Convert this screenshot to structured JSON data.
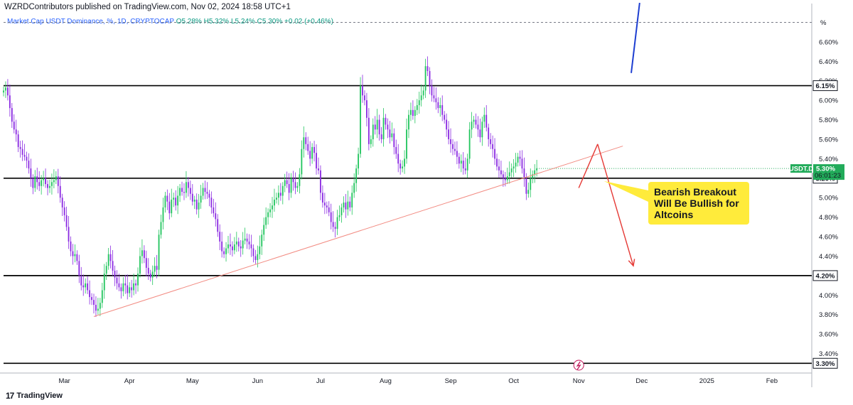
{
  "header": {
    "author": "WZRDContributors",
    "publish_text": "published on TradingView.com, Nov 02, 2024 18:58 UTC+1"
  },
  "legend": {
    "symbol_name": "Market Cap USDT Dominance, %, 1D, CRYPTOCAP",
    "open": "O5.28%",
    "high": "H5.32%",
    "low": "L5.24%",
    "close": "C5.30%",
    "change": "+0.02 (+0.46%)"
  },
  "footer": {
    "brand": "TradingView",
    "logo": "17"
  },
  "colors": {
    "up": "#22c55e",
    "down": "#8b2be2",
    "level_line": "#000000",
    "trendline": "#f28b82",
    "arrow_red": "#e53935",
    "arrow_blue": "#1e3fd1",
    "callout_bg": "#ffeb3b",
    "price_badge": "#22ab5a",
    "lightning_icon": "#c2185b"
  },
  "chart_data": {
    "type": "candlestick",
    "title": "",
    "y_unit": "%",
    "ylim": [
      3.2,
      6.92
    ],
    "y_ticks": [
      "3.40%",
      "3.60%",
      "3.80%",
      "4.00%",
      "4.20%",
      "4.40%",
      "4.60%",
      "4.80%",
      "5.00%",
      "5.20%",
      "5.40%",
      "5.60%",
      "5.80%",
      "6.00%",
      "6.20%",
      "6.40%",
      "6.60%"
    ],
    "y_axis_unit_label": "%",
    "x_date_range": [
      "2024-02-01",
      "2025-02-20"
    ],
    "x_ticks": [
      {
        "label": "Mar",
        "date": "2024-03-01"
      },
      {
        "label": "Apr",
        "date": "2024-04-01"
      },
      {
        "label": "May",
        "date": "2024-05-01"
      },
      {
        "label": "Jun",
        "date": "2024-06-01"
      },
      {
        "label": "Jul",
        "date": "2024-07-01"
      },
      {
        "label": "Aug",
        "date": "2024-08-01"
      },
      {
        "label": "Sep",
        "date": "2024-09-01"
      },
      {
        "label": "Oct",
        "date": "2024-10-01"
      },
      {
        "label": "Nov",
        "date": "2024-11-01"
      },
      {
        "label": "Dec",
        "date": "2024-12-01"
      },
      {
        "label": "2025",
        "date": "2025-01-01"
      },
      {
        "label": "Feb",
        "date": "2025-02-01"
      }
    ],
    "close_series": {
      "start_date": "2024-02-01",
      "frequency": "1D",
      "values": [
        6.1,
        6.13,
        6.05,
        5.92,
        5.78,
        5.7,
        5.65,
        5.52,
        5.5,
        5.44,
        5.42,
        5.38,
        5.3,
        5.2,
        5.1,
        5.22,
        5.16,
        5.12,
        5.18,
        5.2,
        5.14,
        5.1,
        5.12,
        5.16,
        5.18,
        5.22,
        5.12,
        5.0,
        4.9,
        4.82,
        4.7,
        4.55,
        4.45,
        4.4,
        4.42,
        4.35,
        4.2,
        4.1,
        4.08,
        4.12,
        4.05,
        3.98,
        3.95,
        3.9,
        3.84,
        3.86,
        3.92,
        4.05,
        4.22,
        4.3,
        4.42,
        4.35,
        4.25,
        4.18,
        4.12,
        4.08,
        4.04,
        4.12,
        4.1,
        4.02,
        4.08,
        4.05,
        4.12,
        4.1,
        4.22,
        4.4,
        4.46,
        4.38,
        4.28,
        4.22,
        4.18,
        4.24,
        4.3,
        4.26,
        4.62,
        4.75,
        4.9,
        5.02,
        4.96,
        4.84,
        4.98,
        5.0,
        4.92,
        5.02,
        5.1,
        5.06,
        5.05,
        5.16,
        5.1,
        5.04,
        4.96,
        4.98,
        4.88,
        4.95,
        5.02,
        5.1,
        5.06,
        5.04,
        5.0,
        4.9,
        4.84,
        4.78,
        4.65,
        4.55,
        4.45,
        4.42,
        4.48,
        4.52,
        4.5,
        4.46,
        4.52,
        4.55,
        4.5,
        4.48,
        4.56,
        4.58,
        4.55,
        4.52,
        4.48,
        4.4,
        4.36,
        4.42,
        4.5,
        4.62,
        4.72,
        4.8,
        4.85,
        4.88,
        4.92,
        4.98,
        5.0,
        5.05,
        5.02,
        5.12,
        5.18,
        5.14,
        5.05,
        5.2,
        5.16,
        5.1,
        5.12,
        5.24,
        5.5,
        5.62,
        5.55,
        5.48,
        5.4,
        5.52,
        5.46,
        5.3,
        5.28,
        5.05,
        4.95,
        4.92,
        4.9,
        4.85,
        4.75,
        4.7,
        4.68,
        4.8,
        4.82,
        4.9,
        4.95,
        4.88,
        4.96,
        4.9,
        5.05,
        5.15,
        5.3,
        5.45,
        6.15,
        6.05,
        6.0,
        5.82,
        5.55,
        5.6,
        5.75,
        5.7,
        5.8,
        5.65,
        5.6,
        5.82,
        5.75,
        5.7,
        5.62,
        5.66,
        5.52,
        5.45,
        5.35,
        5.3,
        5.32,
        5.4,
        5.7,
        5.85,
        5.9,
        5.84,
        5.9,
        5.95,
        6.0,
        6.05,
        6.1,
        6.35,
        6.3,
        6.15,
        6.05,
        6.02,
        5.98,
        5.92,
        5.95,
        5.85,
        5.8,
        5.7,
        5.6,
        5.55,
        5.5,
        5.48,
        5.42,
        5.35,
        5.38,
        5.3,
        5.28,
        5.4,
        5.7,
        5.78,
        5.8,
        5.75,
        5.7,
        5.62,
        5.78,
        5.85,
        5.72,
        5.6,
        5.55,
        5.5,
        5.4,
        5.32,
        5.28,
        5.24,
        5.2,
        5.18,
        5.22,
        5.26,
        5.3,
        5.32,
        5.36,
        5.42,
        5.4,
        5.3,
        5.2,
        5.04,
        5.08,
        5.2,
        5.24,
        5.28,
        5.3
      ]
    },
    "levels": [
      {
        "label": "6.15%",
        "value": 6.15
      },
      {
        "label": "5.20%",
        "value": 5.2
      },
      {
        "label": "4.20%",
        "value": 4.2
      },
      {
        "label": "3.30%",
        "value": 3.3
      }
    ],
    "dashed_level": 6.8,
    "current_price": {
      "symbol": "USDT.D",
      "value": "5.30%",
      "countdown": "06:01:23"
    },
    "trendline": {
      "from": {
        "date": "2024-03-15",
        "price": 3.78
      },
      "to": {
        "date": "2024-11-22",
        "price": 5.53
      }
    },
    "projection_path": [
      {
        "date": "2024-11-01",
        "price": 5.1
      },
      {
        "date": "2024-11-10",
        "price": 5.55
      },
      {
        "date": "2024-11-27",
        "price": 4.3
      }
    ],
    "bullish_line": [
      {
        "date": "2024-11-26",
        "price": 6.28
      },
      {
        "date": "2024-11-30",
        "price": 7.0
      }
    ],
    "callout": {
      "text_lines": [
        "Bearish Breakout",
        "Will Be Bullish for",
        "Altcoins"
      ],
      "pointer": {
        "date": "2024-11-13",
        "price": 5.17
      }
    }
  }
}
